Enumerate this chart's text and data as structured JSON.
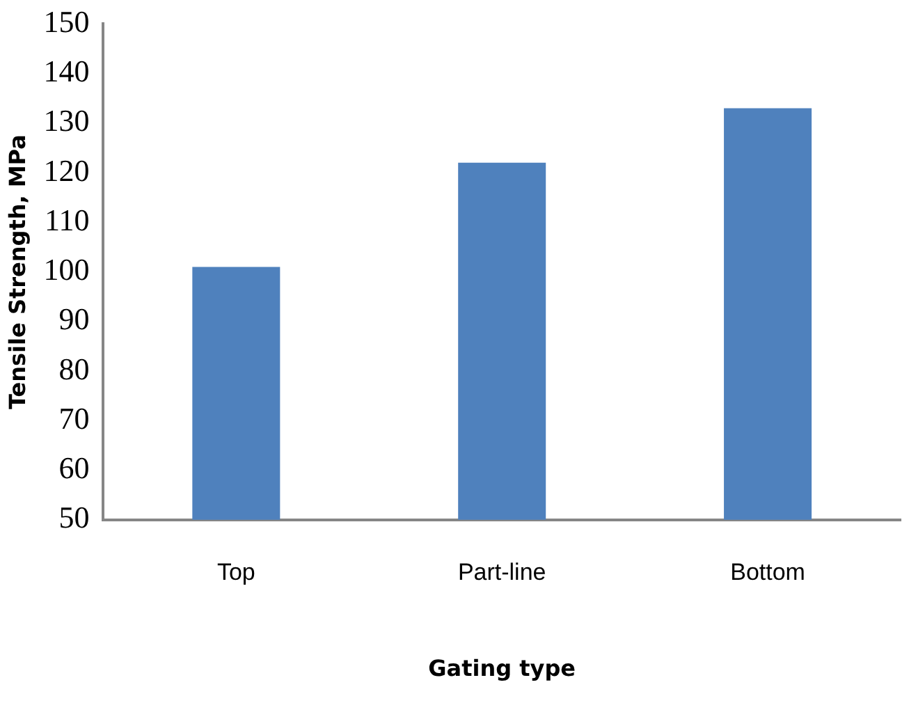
{
  "chart_data": {
    "type": "bar",
    "xlabel": "Gating type",
    "ylabel": "Tensile Strength, MPa",
    "categories": [
      "Top",
      "Part-line",
      "Bottom"
    ],
    "values": [
      101,
      122,
      133
    ],
    "color": "#4f81bd",
    "ylim": [
      50,
      150
    ],
    "yticks": [
      50,
      60,
      70,
      80,
      90,
      100,
      110,
      120,
      130,
      140,
      150
    ],
    "grid": false,
    "legend": false
  }
}
